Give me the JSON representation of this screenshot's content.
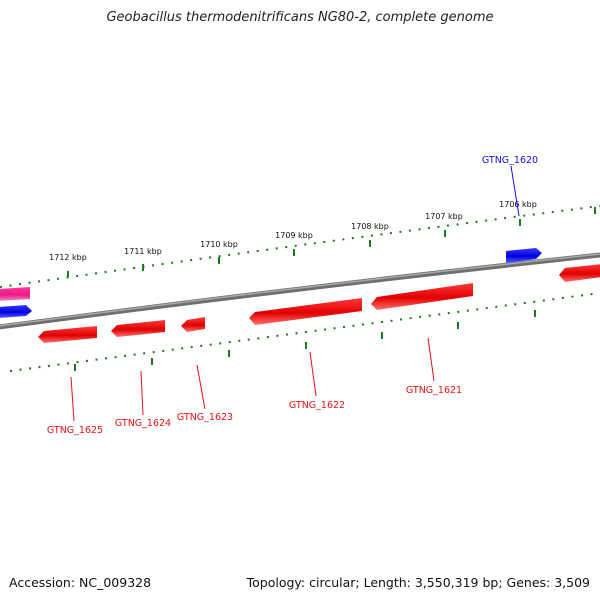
{
  "map": {
    "title": "Geobacillus thermodenitrificans NG80-2, complete genome",
    "accession": "Accession: NC_009328",
    "summary": "Topology: circular; Length: 3,550,319 bp; Genes: 3,509",
    "colors": {
      "forward_gene": "#1010ee",
      "reverse_gene": "#ee1010",
      "other_gene": "#ee2090",
      "tick": "#1a7a1a",
      "backbone": "#808080"
    },
    "kbp_labels": [
      "1712 kbp",
      "1711 kbp",
      "1710 kbp",
      "1709 kbp",
      "1708 kbp",
      "1707 kbp",
      "1706 kbp"
    ],
    "genes": [
      {
        "id": "GTNG_1620",
        "strand": "forward"
      },
      {
        "id": "GTNG_1621",
        "strand": "reverse"
      },
      {
        "id": "GTNG_1622",
        "strand": "reverse"
      },
      {
        "id": "GTNG_1623",
        "strand": "reverse"
      },
      {
        "id": "GTNG_1624",
        "strand": "reverse"
      },
      {
        "id": "GTNG_1625",
        "strand": "reverse"
      }
    ]
  }
}
